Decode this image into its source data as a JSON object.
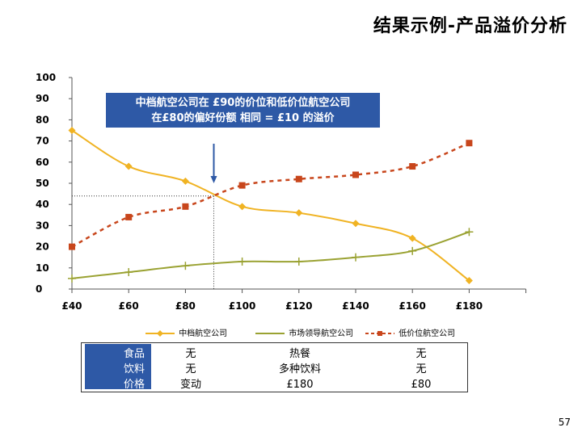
{
  "title": "结果示例-产品溢价分析",
  "callout": {
    "line1": "中档航空公司在 £90的价位和低价位航空公司",
    "line2": "在£80的偏好份额 相同 = £10 的溢价"
  },
  "colors": {
    "mid": "#f0b323",
    "market": "#9aa232",
    "low": "#c8461c",
    "callout_bg": "#2e59a6"
  },
  "chart_data": {
    "type": "line",
    "title": "",
    "xlabel": "",
    "ylabel": "",
    "x": [
      40,
      60,
      80,
      100,
      120,
      140,
      160,
      180
    ],
    "x_tick_labels": [
      "£40",
      "£60",
      "£80",
      "£100",
      "£120",
      "£140",
      "£160",
      "£180"
    ],
    "y_ticks": [
      "0",
      "10",
      "20",
      "30",
      "40",
      "50",
      "60",
      "70",
      "80",
      "90",
      "100"
    ],
    "ylim": [
      0,
      100
    ],
    "xlim": [
      40,
      200
    ],
    "series": [
      {
        "name": "中档航空公司",
        "style": "smooth-line-diamond",
        "color": "#f0b323",
        "values": [
          75,
          58,
          51,
          39,
          36,
          31,
          24,
          4
        ]
      },
      {
        "name": "市场领导航空公司",
        "style": "smooth-line-plus",
        "color": "#9aa232",
        "values": [
          5,
          8,
          11,
          13,
          13,
          15,
          18,
          27
        ]
      },
      {
        "name": "低价位航空公司",
        "style": "dashed-square",
        "color": "#c8461c",
        "values": [
          20,
          34,
          39,
          49,
          52,
          54,
          58,
          69
        ]
      }
    ],
    "reference": {
      "x": 90,
      "y": 44
    },
    "grid": false,
    "legend_position": "bottom"
  },
  "table": {
    "row_labels": [
      "食品",
      "饮料",
      "价格"
    ],
    "mid": [
      "无",
      "无",
      "变动"
    ],
    "market": [
      "热餐",
      "多种饮料",
      "£180"
    ],
    "low": [
      "无",
      "无",
      "£80"
    ]
  },
  "page_number": "57"
}
